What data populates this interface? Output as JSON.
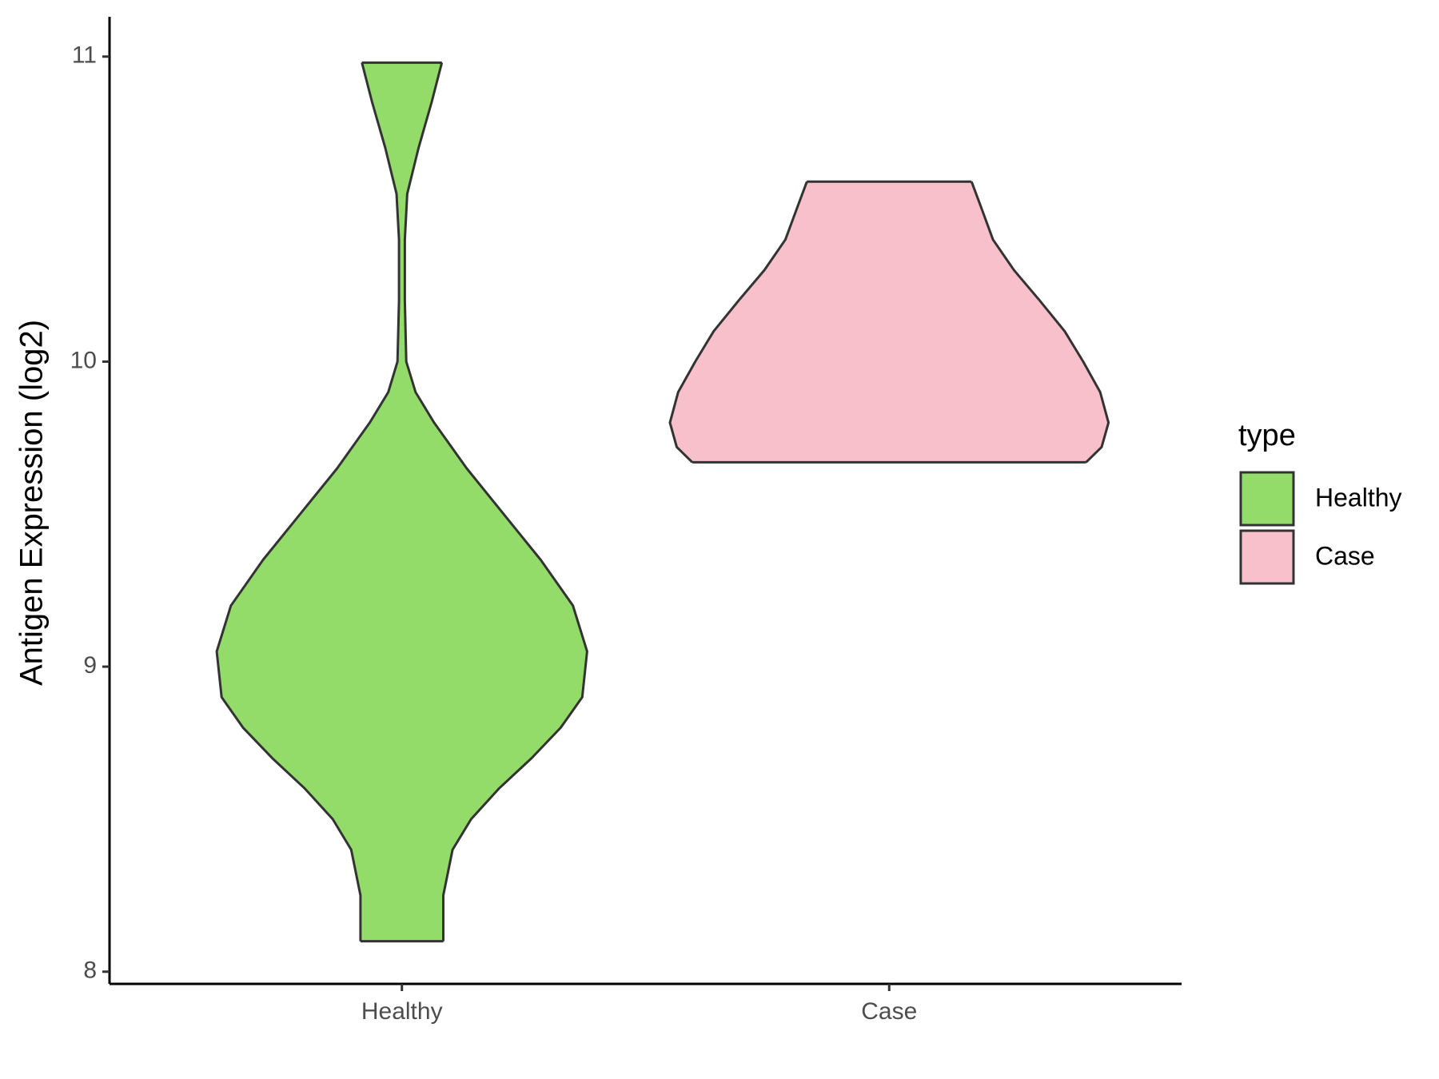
{
  "chart_data": {
    "type": "violin",
    "y_label": "Antigen Expression (log2)",
    "categories": [
      "Healthy",
      "Case"
    ],
    "ylim": [
      7.96,
      11.12
    ],
    "yticks": [
      8,
      9,
      10,
      11
    ],
    "legend_title": "type",
    "legend_position": "right",
    "series": [
      {
        "name": "Healthy",
        "color": "#93dc6a",
        "y": [
          8.1,
          8.25,
          8.4,
          8.5,
          8.6,
          8.7,
          8.8,
          8.9,
          9.05,
          9.2,
          9.35,
          9.5,
          9.65,
          9.8,
          9.9,
          10.0,
          10.2,
          10.4,
          10.55,
          10.7,
          10.85,
          10.98
        ],
        "half_width": [
          0.085,
          0.085,
          0.104,
          0.142,
          0.199,
          0.266,
          0.326,
          0.37,
          0.38,
          0.351,
          0.285,
          0.209,
          0.133,
          0.066,
          0.028,
          0.009,
          0.006,
          0.006,
          0.011,
          0.034,
          0.061,
          0.082
        ]
      },
      {
        "name": "Case",
        "color": "#f7c0cb",
        "y": [
          9.67,
          9.72,
          9.8,
          9.9,
          10.0,
          10.1,
          10.2,
          10.3,
          10.4,
          10.5,
          10.59
        ],
        "half_width": [
          0.404,
          0.436,
          0.45,
          0.433,
          0.398,
          0.36,
          0.309,
          0.256,
          0.213,
          0.19,
          0.169
        ]
      }
    ]
  }
}
